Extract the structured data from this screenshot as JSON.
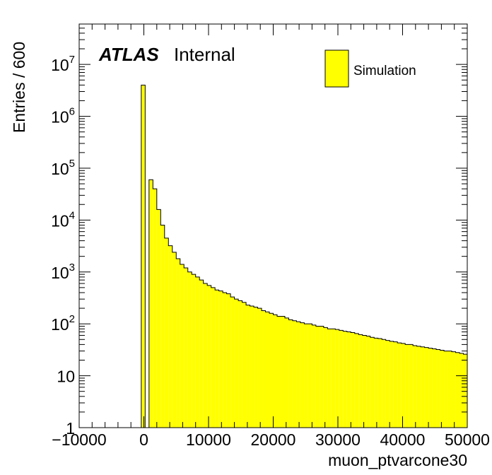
{
  "chart_data": {
    "type": "bar",
    "histogram": true,
    "xlabel": "muon_ptvarcone30",
    "ylabel": "Entries / 600",
    "xlim": [
      -10000,
      50000
    ],
    "ylim": [
      1,
      60000000
    ],
    "yscale": "log",
    "grid": false,
    "bin_width": 600,
    "x_ticks": [
      -10000,
      0,
      10000,
      20000,
      30000,
      40000,
      50000
    ],
    "x_tick_labels": [
      "−10000",
      "0",
      "10000",
      "20000",
      "30000",
      "40000",
      "50000"
    ],
    "y_ticks": [
      {
        "value": 1,
        "base": "1",
        "exp": ""
      },
      {
        "value": 10,
        "base": "10",
        "exp": ""
      },
      {
        "value": 100,
        "base": "10",
        "exp": "2"
      },
      {
        "value": 1000,
        "base": "10",
        "exp": "3"
      },
      {
        "value": 10000,
        "base": "10",
        "exp": "4"
      },
      {
        "value": 100000,
        "base": "10",
        "exp": "5"
      },
      {
        "value": 1000000,
        "base": "10",
        "exp": "6"
      },
      {
        "value": 10000000,
        "base": "10",
        "exp": "7"
      }
    ],
    "annotation": {
      "bold_text": "ATLAS",
      "text": "Internal"
    },
    "legend": {
      "position": "top-right",
      "color": "#ffff00"
    },
    "series": [
      {
        "name": "Simulation",
        "color": "#ffff00",
        "edge_color": "#000000",
        "bin_edges_start": -400,
        "values": [
          4000000,
          0,
          60000,
          40000,
          16000,
          8000,
          4500,
          3200,
          2400,
          1800,
          1400,
          1200,
          1000,
          900,
          800,
          700,
          600,
          550,
          500,
          450,
          430,
          400,
          380,
          330,
          300,
          280,
          260,
          230,
          220,
          210,
          200,
          180,
          170,
          160,
          150,
          140,
          140,
          130,
          120,
          115,
          110,
          105,
          100,
          100,
          95,
          90,
          90,
          85,
          80,
          80,
          78,
          75,
          72,
          70,
          68,
          65,
          62,
          60,
          58,
          55,
          53,
          52,
          50,
          48,
          46,
          45,
          43,
          42,
          40,
          40,
          38,
          37,
          36,
          35,
          34,
          33,
          32,
          31,
          30,
          30,
          29,
          28,
          27,
          26,
          25,
          26,
          25,
          24,
          24
        ]
      }
    ]
  }
}
